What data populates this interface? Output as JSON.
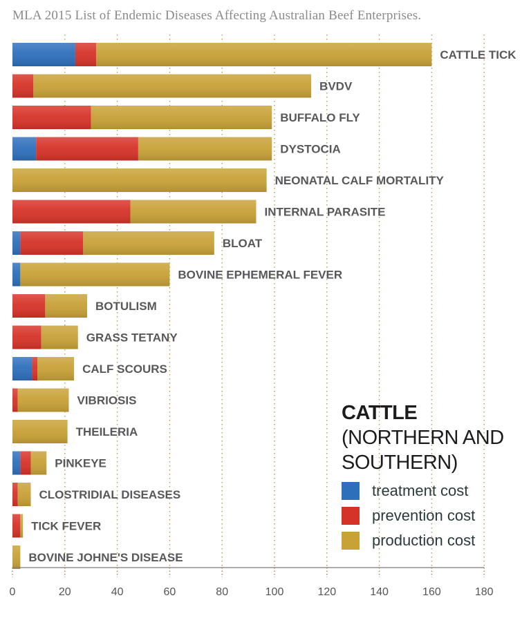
{
  "chart_data": {
    "type": "bar",
    "orientation": "horizontal",
    "stacked": true,
    "title": "MLA 2015 List of Endemic Diseases Affecting Australian Beef Enterprises.",
    "xlim": [
      0,
      180
    ],
    "xticks": [
      0,
      20,
      40,
      60,
      80,
      100,
      120,
      140,
      160,
      180
    ],
    "grid": "vertical dotted",
    "categories": [
      "CATTLE TICK",
      "BVDV",
      "BUFFALO FLY",
      "DYSTOCIA",
      "NEONATAL CALF MORTALITY",
      "INTERNAL PARASITE",
      "BLOAT",
      "BOVINE EPHEMERAL FEVER",
      "BOTULISM",
      "GRASS TETANY",
      "CALF SCOURS",
      "VIBRIOSIS",
      "THEILERIA",
      "PINKEYE",
      "CLOSTRIDIAL DISEASES",
      "TICK FEVER",
      "BOVINE JOHNE'S DISEASE"
    ],
    "series": [
      {
        "name": "treatment cost",
        "color": "#2e6fbc",
        "values": [
          24,
          0,
          0,
          9,
          0,
          0,
          3,
          3,
          0,
          0,
          7.5,
          0,
          0,
          3,
          0,
          0,
          0
        ]
      },
      {
        "name": "prevention cost",
        "color": "#d63328",
        "values": [
          8,
          8,
          30,
          39,
          0,
          45,
          24,
          0,
          12.5,
          11,
          2,
          2,
          0,
          4,
          2,
          3,
          0
        ]
      },
      {
        "name": "production cost",
        "color": "#c8a137",
        "values": [
          128,
          106,
          69,
          51,
          97,
          48,
          50,
          57,
          16,
          14,
          14,
          19.5,
          21,
          6,
          5,
          1,
          3
        ]
      }
    ],
    "legend": {
      "position": "bottom-right",
      "title_bold": "CATTLE",
      "title_rest": " (NORTHERN AND SOUTHERN)"
    }
  }
}
